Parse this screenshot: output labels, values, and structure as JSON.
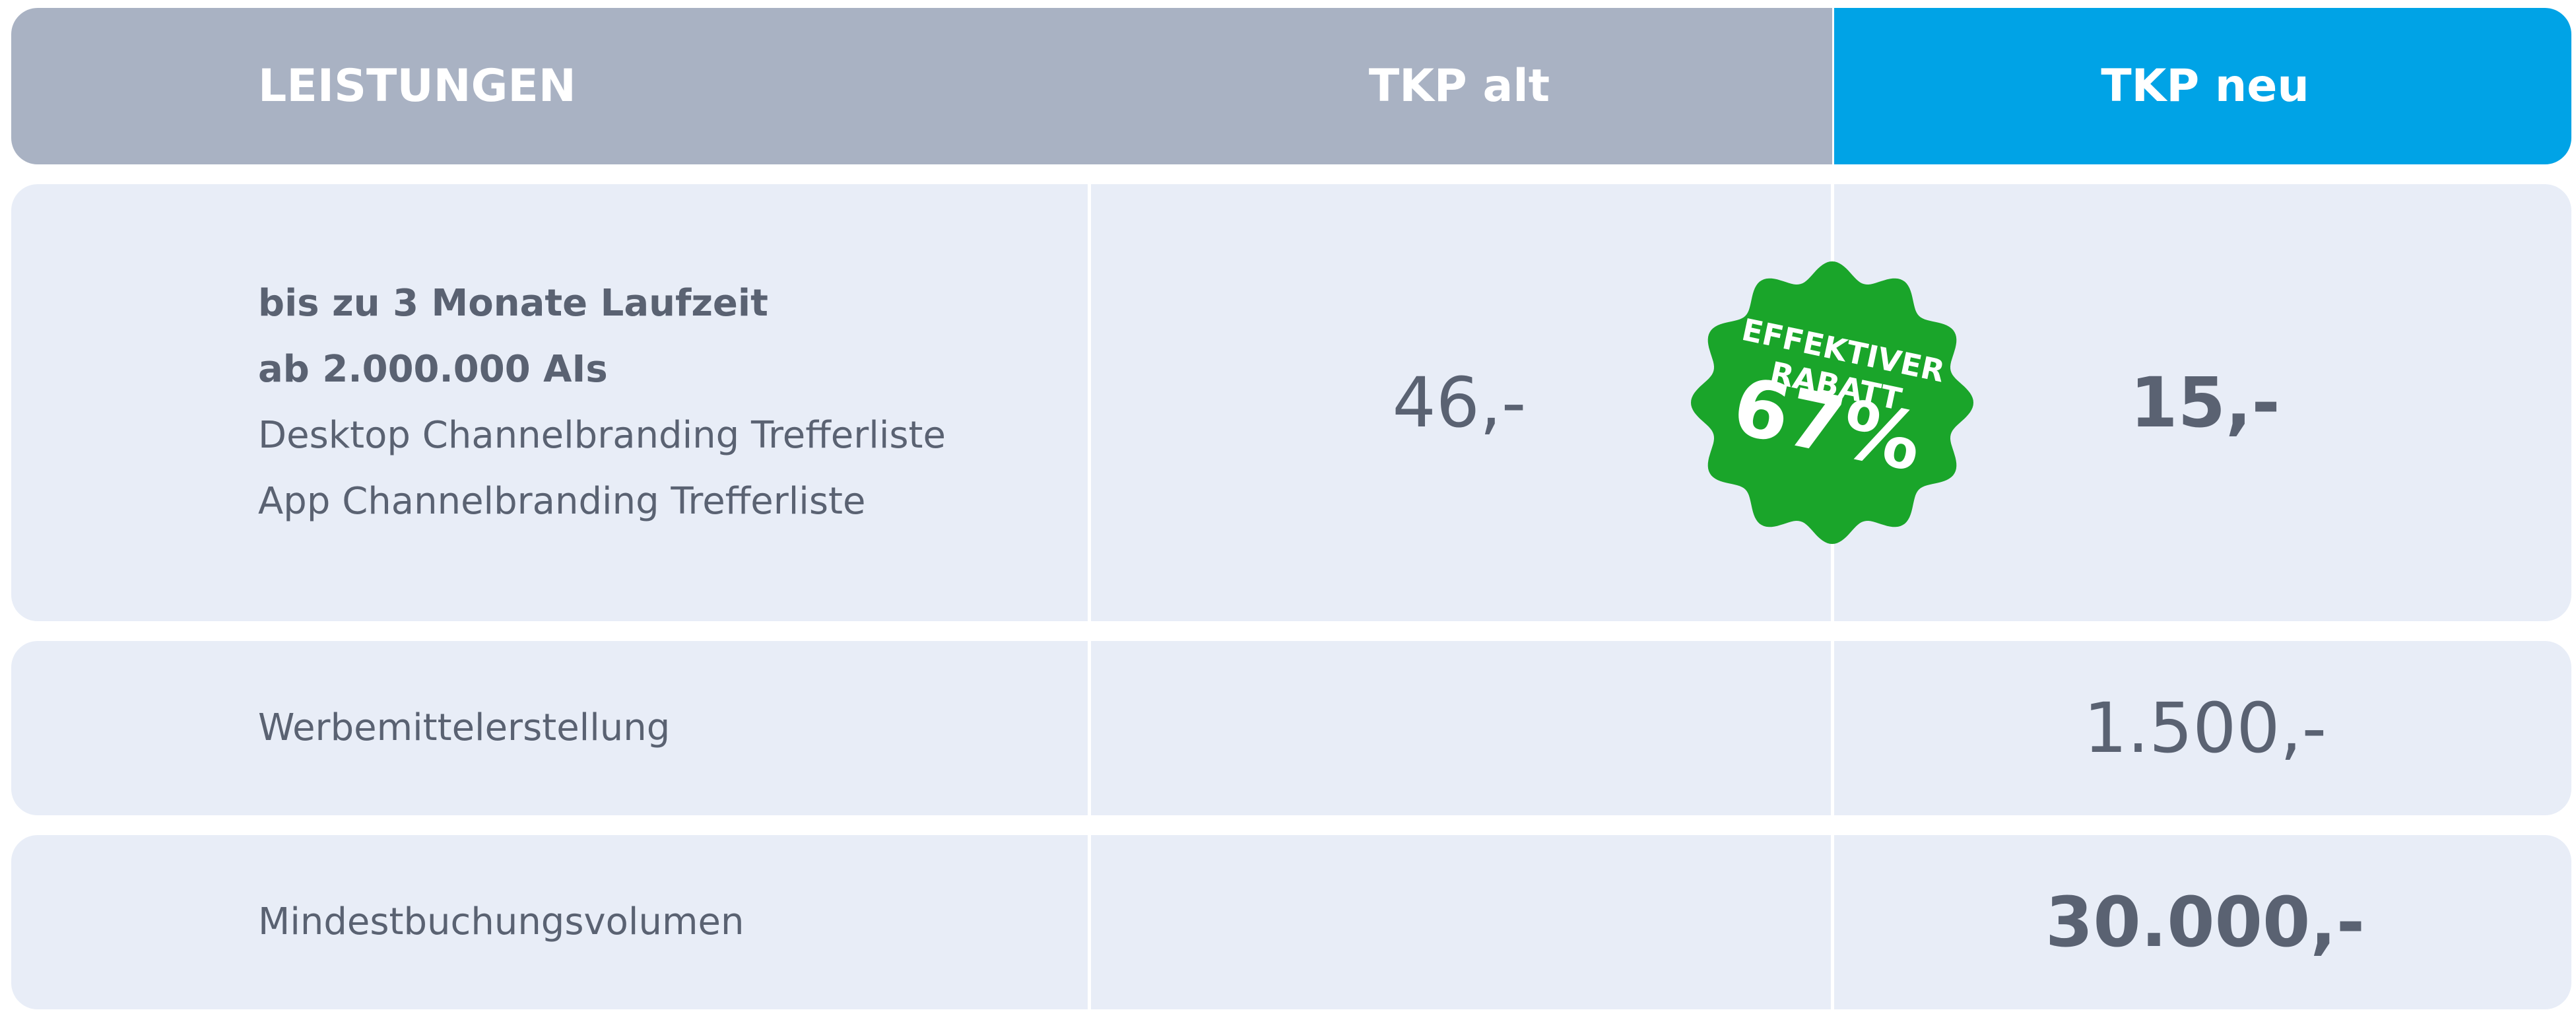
{
  "header": [
    "LEISTUNGEN",
    "TKP alt",
    "TKP neu"
  ],
  "rows": [
    {
      "lines": [
        {
          "text": "bis zu 3 Monate Laufzeit",
          "bold": true
        },
        {
          "text": "ab 2.000.000 AIs",
          "bold": true
        },
        {
          "text": "Desktop Channelbranding Trefferliste",
          "bold": false
        },
        {
          "text": "App Channelbranding Trefferliste",
          "bold": false
        }
      ],
      "alt": "46,-",
      "neu": "15,-",
      "neu_bold": true
    },
    {
      "lines": [
        {
          "text": "Werbemittelerstellung",
          "bold": false
        }
      ],
      "neu": "1.500,-",
      "neu_bold": false
    },
    {
      "lines": [
        {
          "text": "Mindestbuchungsvolumen",
          "bold": false
        }
      ],
      "neu": "30.000,-",
      "neu_bold": true
    }
  ],
  "badge": {
    "lines": [
      "EFFEKTIVER",
      "RABATT",
      "67%"
    ],
    "color": "#1aa52a"
  }
}
